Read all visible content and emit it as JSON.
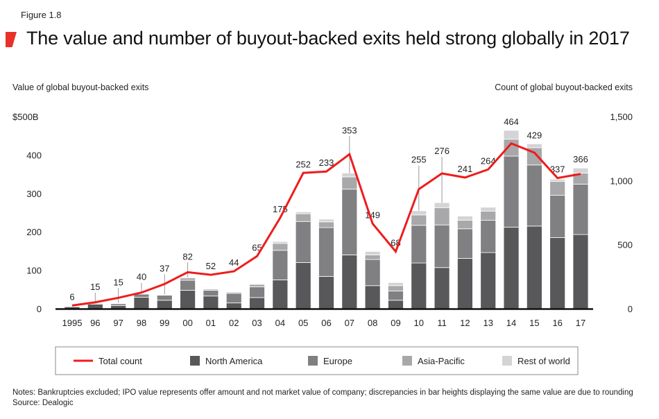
{
  "figure_label": "Figure 1.8",
  "title": "The value and number of buyout-backed exits held strong globally in 2017",
  "notes": "Notes: Bankruptcies excluded; IPO value represents offer amount and not market value of company; discrepancies in bar heights displaying the same value are due to rounding",
  "source": "Source: Dealogic",
  "colors": {
    "accent": "#e8312b",
    "north_america": "#58585a",
    "europe": "#808083",
    "asia_pacific": "#a8a8aa",
    "rest_of_world": "#d4d4d6",
    "line": "#ee1c1c"
  },
  "chart_data": {
    "type": "bar+line",
    "stacked": true,
    "ylabel_left": "Value of global buyout-backed exits",
    "ylabel_right": "Count of global buyout-backed exits",
    "ylim_left": [
      0,
      500
    ],
    "ylim_right": [
      0,
      1500
    ],
    "left_ticks": [
      "0",
      "100",
      "200",
      "300",
      "400",
      "$500B"
    ],
    "right_ticks": [
      "0",
      "500",
      "1,000",
      "1,500"
    ],
    "grid": false,
    "legend_position": "bottom",
    "categories": [
      "1995",
      "96",
      "97",
      "98",
      "99",
      "00",
      "01",
      "02",
      "03",
      "04",
      "05",
      "06",
      "07",
      "08",
      "09",
      "10",
      "11",
      "12",
      "13",
      "14",
      "15",
      "16",
      "17"
    ],
    "totals": [
      6,
      15,
      15,
      40,
      37,
      82,
      52,
      44,
      65,
      175,
      252,
      233,
      353,
      149,
      68,
      255,
      276,
      241,
      264,
      464,
      429,
      337,
      366
    ],
    "series": [
      {
        "name": "North America",
        "values": [
          5,
          12,
          8,
          30,
          22,
          48,
          33,
          15,
          29,
          75,
          120,
          84,
          140,
          60,
          22,
          119,
          107,
          131,
          146,
          212,
          215,
          185,
          193
        ]
      },
      {
        "name": "Europe",
        "values": [
          1,
          2,
          5,
          8,
          13,
          26,
          15,
          25,
          28,
          77,
          107,
          127,
          171,
          68,
          24,
          98,
          111,
          77,
          84,
          185,
          159,
          110,
          131
        ]
      },
      {
        "name": "Asia-Pacific",
        "values": [
          0,
          1,
          1,
          1,
          1,
          6,
          3,
          3,
          6,
          18,
          20,
          15,
          32,
          12,
          14,
          27,
          45,
          22,
          24,
          44,
          45,
          36,
          29
        ]
      },
      {
        "name": "Rest of world",
        "values": [
          0,
          0,
          1,
          1,
          1,
          2,
          1,
          1,
          2,
          5,
          5,
          7,
          10,
          9,
          8,
          11,
          13,
          11,
          10,
          23,
          10,
          6,
          13
        ]
      }
    ],
    "line": {
      "name": "Total count",
      "axis": "right",
      "values": [
        25,
        50,
        85,
        126,
        193,
        285,
        265,
        292,
        410,
        709,
        1060,
        1071,
        1206,
        664,
        446,
        933,
        1056,
        1024,
        1087,
        1290,
        1218,
        1020,
        1052
      ]
    }
  }
}
